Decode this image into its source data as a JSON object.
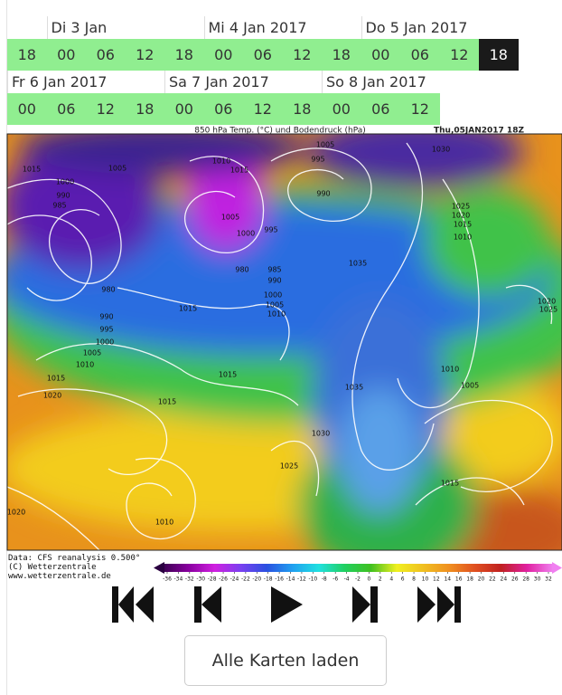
{
  "timeline": {
    "rows": [
      {
        "leading_hours": [
          "18"
        ],
        "days": [
          {
            "label": "Di 3 Jan",
            "hours": [
              "00",
              "06",
              "12",
              "18"
            ]
          },
          {
            "label": "Mi 4 Jan 2017",
            "hours": [
              "00",
              "06",
              "12",
              "18"
            ]
          },
          {
            "label": "Do 5 Jan 2017",
            "hours": [
              "00",
              "06",
              "12",
              "18"
            ]
          }
        ]
      },
      {
        "leading_hours": [],
        "days": [
          {
            "label": "Fr 6 Jan 2017",
            "hours": [
              "00",
              "06",
              "12",
              "18"
            ]
          },
          {
            "label": "Sa 7 Jan 2017",
            "hours": [
              "00",
              "06",
              "12",
              "18"
            ]
          },
          {
            "label": "So 8 Jan 2017",
            "hours": [
              "00",
              "06",
              "12"
            ]
          }
        ]
      }
    ],
    "selected": {
      "row": 0,
      "day": 2,
      "hour": 3
    }
  },
  "map": {
    "title": "850 hPa Temp. (°C) und Bodendruck (hPa)",
    "timestamp": "Thu,05JAN2017 18Z",
    "isobar_labels": [
      "1005",
      "1030",
      "995",
      "990",
      "1015",
      "1005",
      "1010",
      "1015",
      "1000",
      "990",
      "985",
      "1005",
      "1000",
      "995",
      "980",
      "985",
      "990",
      "1000",
      "1005",
      "1010",
      "1015",
      "980",
      "990",
      "995",
      "1000",
      "1005",
      "1010",
      "1015",
      "1020",
      "1015",
      "1015",
      "1035",
      "1035",
      "1030",
      "1025",
      "1010",
      "1020",
      "1010",
      "1005",
      "1015",
      "1025",
      "1020",
      "1015",
      "1010",
      "1020",
      "1025"
    ]
  },
  "credits": [
    "Data: CFS reanalysis 0.500°",
    "(C) Wetterzentrale",
    "www.wetterzentrale.de"
  ],
  "legend": {
    "ticks": [
      -36,
      -34,
      -32,
      -30,
      -28,
      -26,
      -24,
      -22,
      -20,
      -18,
      -16,
      -14,
      -12,
      -10,
      -8,
      -6,
      -4,
      -2,
      0,
      2,
      4,
      6,
      8,
      10,
      12,
      14,
      16,
      18,
      20,
      22,
      24,
      26,
      28,
      30,
      32
    ]
  },
  "button": "Alle Karten laden"
}
